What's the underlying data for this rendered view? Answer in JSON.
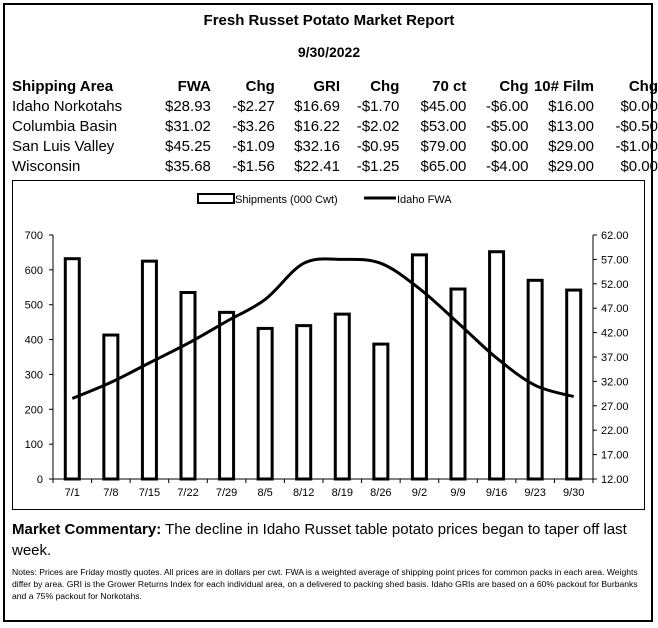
{
  "report": {
    "title": "Fresh Russet Potato Market Report",
    "date": "9/30/2022"
  },
  "table": {
    "headers": [
      "Shipping Area",
      "FWA",
      "Chg",
      "GRI",
      "Chg",
      "70 ct",
      "Chg",
      "10# Film",
      "Chg"
    ],
    "rows": [
      [
        "Idaho Norkotahs",
        "$28.93",
        "-$2.27",
        "$16.69",
        "-$1.70",
        "$45.00",
        "-$6.00",
        "$16.00",
        "$0.00"
      ],
      [
        "Columbia Basin",
        "$31.02",
        "-$3.26",
        "$16.22",
        "-$2.02",
        "$53.00",
        "-$5.00",
        "$13.00",
        "-$0.50"
      ],
      [
        "San Luis Valley",
        "$45.25",
        "-$1.09",
        "$32.16",
        "-$0.95",
        "$79.00",
        "$0.00",
        "$29.00",
        "-$1.00"
      ],
      [
        "Wisconsin",
        "$35.68",
        "-$1.56",
        "$22.41",
        "-$1.25",
        "$65.00",
        "-$4.00",
        "$29.00",
        "$0.00"
      ]
    ]
  },
  "chart_data": {
    "type": "bar",
    "categories": [
      "7/1",
      "7/8",
      "7/15",
      "7/22",
      "7/29",
      "8/5",
      "8/12",
      "8/19",
      "8/26",
      "9/2",
      "9/9",
      "9/16",
      "9/23",
      "9/30"
    ],
    "series": [
      {
        "name": "Shipments (000 Cwt)",
        "type": "bar",
        "axis": "left",
        "color": "#000000",
        "values": [
          632,
          413,
          625,
          535,
          478,
          432,
          440,
          473,
          387,
          643,
          545,
          652,
          570,
          542
        ]
      },
      {
        "name": "Idaho FWA",
        "type": "line",
        "axis": "right",
        "color": "#000000",
        "values": [
          28.5,
          31.8,
          35.8,
          39.8,
          44.3,
          48.8,
          56.2,
          57.0,
          56.2,
          51.0,
          44.0,
          36.8,
          31.2,
          28.9
        ]
      }
    ],
    "y_left": {
      "min": 0,
      "max": 700,
      "ticks": [
        "0",
        "100",
        "200",
        "300",
        "400",
        "500",
        "600",
        "700"
      ]
    },
    "y_right": {
      "min": 12,
      "max": 62,
      "ticks": [
        "12.00",
        "17.00",
        "22.00",
        "27.00",
        "32.00",
        "37.00",
        "42.00",
        "47.00",
        "52.00",
        "57.00",
        "62.00"
      ]
    },
    "legend_position": "top-center",
    "grid": false
  },
  "commentary": {
    "label": "Market Commentary:",
    "text": " The decline in Idaho Russet table potato prices began to taper off last week."
  },
  "notes": "Notes: Prices are Friday mostly quotes. All prices are in dollars per cwt. FWA is a weighted average of shipping point prices for  common packs in each area. Weights differ by area. GRI is the Grower Returns Index for each individual area, on a delivered to packing shed basis. Idaho GRIs are based on a 60% packout for Burbanks and a 75% packout for Norkotahs."
}
